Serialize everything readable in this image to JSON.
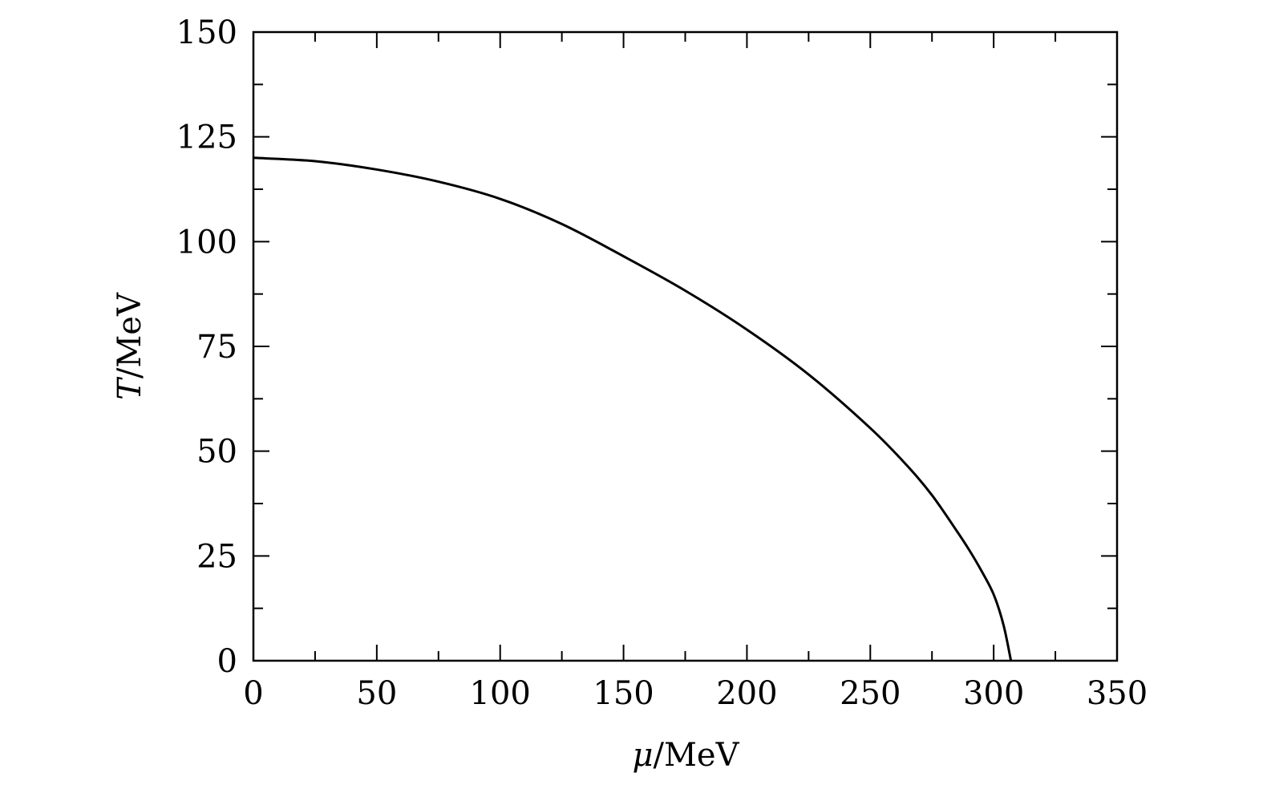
{
  "chart_data": {
    "type": "line",
    "title": "",
    "xlabel_symbol": "μ",
    "xlabel_unit": "/MeV",
    "ylabel_symbol": "T",
    "ylabel_unit": "/MeV",
    "xlim": [
      0,
      350
    ],
    "ylim": [
      0,
      150
    ],
    "xticks": [
      0,
      50,
      100,
      150,
      200,
      250,
      300,
      350
    ],
    "yticks": [
      0,
      25,
      50,
      75,
      100,
      125,
      150
    ],
    "grid": false,
    "legend": "none",
    "line_color": "#000000",
    "series": [
      {
        "x": [
          0,
          25,
          50,
          75,
          100,
          125,
          150,
          175,
          200,
          225,
          250,
          265,
          275,
          285,
          290,
          295,
          300,
          304,
          307
        ],
        "y": [
          120,
          119.2,
          117.2,
          114.3,
          110.2,
          104.2,
          96.5,
          88.3,
          79,
          68.3,
          55.5,
          46.5,
          39.5,
          31,
          26.5,
          21.5,
          15.8,
          8.5,
          0
        ]
      }
    ]
  }
}
